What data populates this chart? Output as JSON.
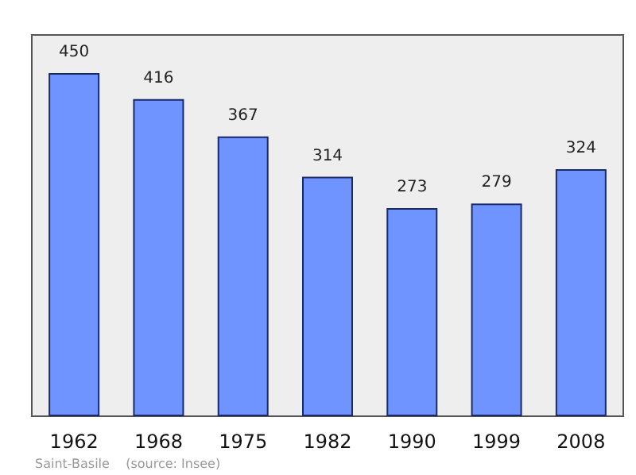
{
  "chart_data": {
    "type": "bar",
    "categories": [
      "1962",
      "1968",
      "1975",
      "1982",
      "1990",
      "1999",
      "2008"
    ],
    "values": [
      450,
      416,
      367,
      314,
      273,
      279,
      324
    ],
    "color": "#6f93ff",
    "data_labels": true,
    "annotations": [
      "Saint-Basile    (source: Insee)"
    ]
  }
}
